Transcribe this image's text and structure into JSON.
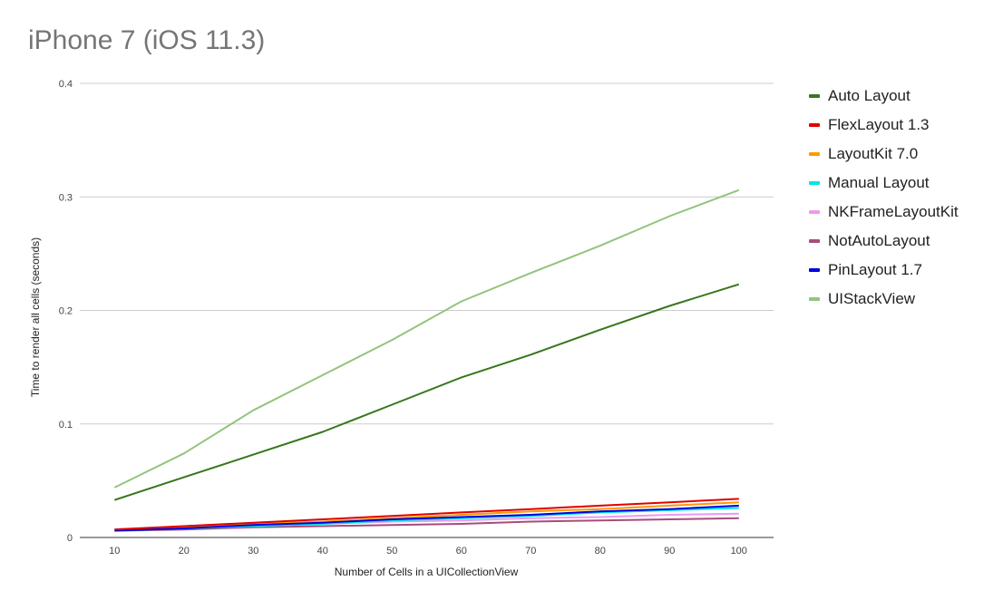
{
  "chart_data": {
    "type": "line",
    "title": "iPhone 7 (iOS 11.3)",
    "xlabel": "Number of Cells in a UICollectionView",
    "ylabel": "Time to  render  all cells (seconds)",
    "x": [
      10,
      20,
      30,
      40,
      50,
      60,
      70,
      80,
      90,
      100
    ],
    "x_ticks": [
      "10",
      "20",
      "30",
      "40",
      "50",
      "60",
      "70",
      "80",
      "90",
      "100"
    ],
    "y_ticks": [
      "0",
      "0.1",
      "0.2",
      "0.3",
      "0.4"
    ],
    "ylim": [
      0,
      0.4
    ],
    "grid": true,
    "legend_position": "right",
    "series": [
      {
        "name": "Auto Layout",
        "color": "#38761d",
        "values": [
          0.033,
          0.053,
          0.073,
          0.093,
          0.117,
          0.141,
          0.161,
          0.183,
          0.204,
          0.223
        ]
      },
      {
        "name": "FlexLayout 1.3",
        "color": "#e00000",
        "values": [
          0.007,
          0.01,
          0.013,
          0.016,
          0.019,
          0.022,
          0.025,
          0.028,
          0.031,
          0.034
        ]
      },
      {
        "name": "LayoutKit 7.0",
        "color": "#ff9900",
        "values": [
          0.007,
          0.009,
          0.012,
          0.014,
          0.017,
          0.02,
          0.023,
          0.025,
          0.028,
          0.031
        ]
      },
      {
        "name": "Manual Layout",
        "color": "#00e5e5",
        "values": [
          0.006,
          0.008,
          0.01,
          0.012,
          0.015,
          0.017,
          0.019,
          0.022,
          0.024,
          0.026
        ]
      },
      {
        "name": "NKFrameLayoutKit",
        "color": "#ea99f0",
        "values": [
          0.007,
          0.009,
          0.01,
          0.012,
          0.014,
          0.015,
          0.017,
          0.018,
          0.02,
          0.021
        ]
      },
      {
        "name": "NotAutoLayout",
        "color": "#a64d79",
        "values": [
          0.006,
          0.007,
          0.009,
          0.01,
          0.011,
          0.012,
          0.014,
          0.015,
          0.016,
          0.017
        ]
      },
      {
        "name": "PinLayout 1.7",
        "color": "#0000e0",
        "values": [
          0.006,
          0.008,
          0.011,
          0.013,
          0.016,
          0.018,
          0.02,
          0.023,
          0.025,
          0.028
        ]
      },
      {
        "name": "UIStackView",
        "color": "#93c47d",
        "values": [
          0.044,
          0.074,
          0.112,
          0.143,
          0.174,
          0.208,
          0.233,
          0.257,
          0.283,
          0.306
        ]
      }
    ]
  }
}
